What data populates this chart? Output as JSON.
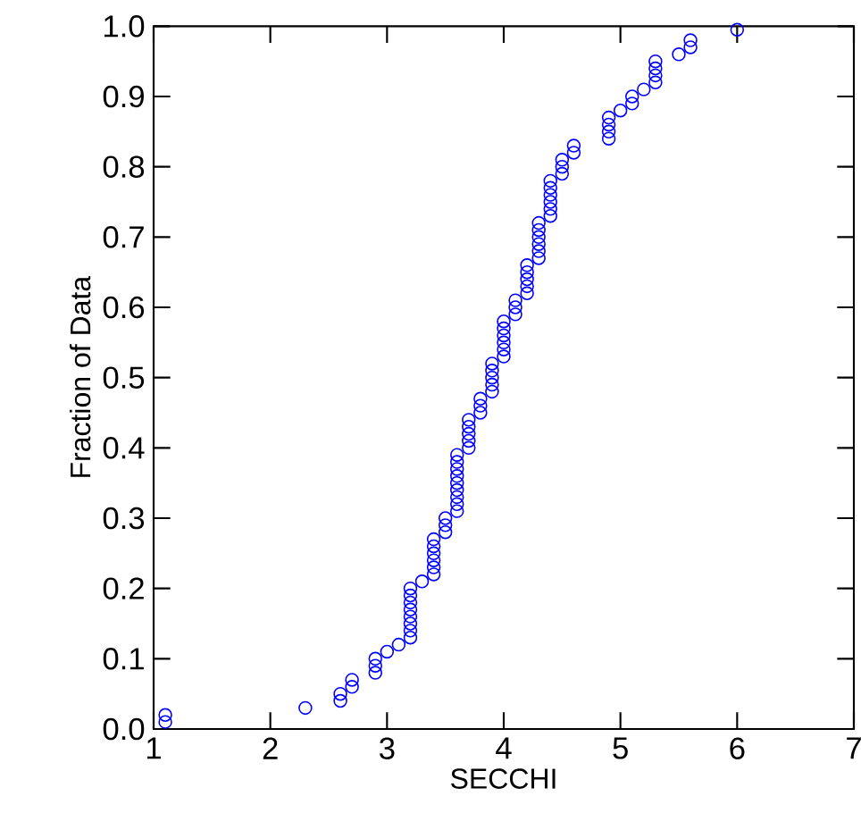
{
  "chart_data": {
    "type": "scatter",
    "xlabel": "SECCHI",
    "ylabel": "Fraction of Data",
    "x": [
      1.1,
      1.1,
      2.3,
      2.6,
      2.6,
      2.7,
      2.7,
      2.9,
      2.9,
      2.9,
      3.0,
      3.1,
      3.2,
      3.2,
      3.2,
      3.2,
      3.2,
      3.2,
      3.2,
      3.2,
      3.3,
      3.4,
      3.4,
      3.4,
      3.4,
      3.4,
      3.4,
      3.5,
      3.5,
      3.5,
      3.6,
      3.6,
      3.6,
      3.6,
      3.6,
      3.6,
      3.6,
      3.6,
      3.6,
      3.7,
      3.7,
      3.7,
      3.7,
      3.7,
      3.8,
      3.8,
      3.8,
      3.9,
      3.9,
      3.9,
      3.9,
      3.9,
      4.0,
      4.0,
      4.0,
      4.0,
      4.0,
      4.0,
      4.1,
      4.1,
      4.1,
      4.2,
      4.2,
      4.2,
      4.2,
      4.2,
      4.3,
      4.3,
      4.3,
      4.3,
      4.3,
      4.3,
      4.4,
      4.4,
      4.4,
      4.4,
      4.4,
      4.4,
      4.5,
      4.5,
      4.5,
      4.6,
      4.6,
      4.9,
      4.9,
      4.9,
      4.9,
      5.0,
      5.1,
      5.1,
      5.2,
      5.3,
      5.3,
      5.3,
      5.3,
      5.5,
      5.6,
      5.6,
      6.0
    ],
    "values": [
      0.01,
      0.02,
      0.03,
      0.04,
      0.05,
      0.06,
      0.07,
      0.08,
      0.09,
      0.1,
      0.11,
      0.12,
      0.13,
      0.14,
      0.15,
      0.16,
      0.17,
      0.18,
      0.19,
      0.2,
      0.21,
      0.22,
      0.23,
      0.24,
      0.25,
      0.26,
      0.27,
      0.28,
      0.29,
      0.3,
      0.31,
      0.32,
      0.33,
      0.34,
      0.35,
      0.36,
      0.37,
      0.38,
      0.39,
      0.4,
      0.41,
      0.42,
      0.43,
      0.44,
      0.45,
      0.46,
      0.47,
      0.48,
      0.49,
      0.5,
      0.51,
      0.52,
      0.53,
      0.54,
      0.55,
      0.56,
      0.57,
      0.58,
      0.59,
      0.6,
      0.61,
      0.62,
      0.63,
      0.64,
      0.65,
      0.66,
      0.67,
      0.68,
      0.69,
      0.7,
      0.71,
      0.72,
      0.73,
      0.74,
      0.75,
      0.76,
      0.77,
      0.78,
      0.79,
      0.8,
      0.81,
      0.82,
      0.83,
      0.84,
      0.85,
      0.86,
      0.87,
      0.88,
      0.89,
      0.9,
      0.91,
      0.92,
      0.93,
      0.94,
      0.95,
      0.96,
      0.97,
      0.98,
      0.995
    ],
    "color": "#0000ff",
    "marker": "circle",
    "xlim": [
      1,
      7
    ],
    "xticks": [
      1,
      2,
      3,
      4,
      5,
      6,
      7
    ],
    "ylim": [
      0,
      1
    ],
    "yticks": [
      {
        "value": 0,
        "label": "0.0"
      },
      0.1,
      0.2,
      0.3,
      0.4,
      0.5,
      0.6,
      0.7,
      0.8,
      0.9,
      {
        "value": 1,
        "label": "1.0"
      }
    ]
  }
}
